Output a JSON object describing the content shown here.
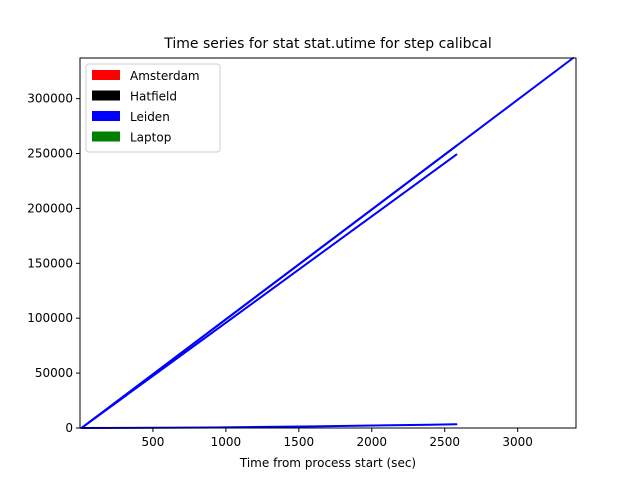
{
  "chart_data": {
    "type": "line",
    "title": "Time series for stat stat.utime for step calibcal",
    "xlabel": "Time from process start (sec)",
    "ylabel": "",
    "xlim": [
      0,
      3400
    ],
    "ylim": [
      0,
      337000
    ],
    "x_ticks": [
      500,
      1000,
      1500,
      2000,
      2500,
      3000
    ],
    "y_ticks": [
      0,
      50000,
      100000,
      150000,
      200000,
      250000,
      300000
    ],
    "grid": false,
    "legend_position": "top-left",
    "legend": [
      {
        "label": "Amsterdam",
        "color": "#ff0000"
      },
      {
        "label": "Hatfield",
        "color": "#000000"
      },
      {
        "label": "Leiden",
        "color": "#0000ff"
      },
      {
        "label": "Laptop",
        "color": "#008000"
      }
    ],
    "series": [
      {
        "color": "#0000ff",
        "x": [
          10,
          3380
        ],
        "y": [
          0,
          337000
        ]
      },
      {
        "color": "#0000ff",
        "x": [
          10,
          2580
        ],
        "y": [
          0,
          257000
        ]
      },
      {
        "color": "#0000ff",
        "x": [
          10,
          2580
        ],
        "y": [
          0,
          249000
        ]
      },
      {
        "color": "#0000ff",
        "x": [
          10,
          900,
          1600,
          2400,
          2580
        ],
        "y": [
          0,
          500,
          1500,
          3000,
          3500
        ]
      }
    ]
  }
}
